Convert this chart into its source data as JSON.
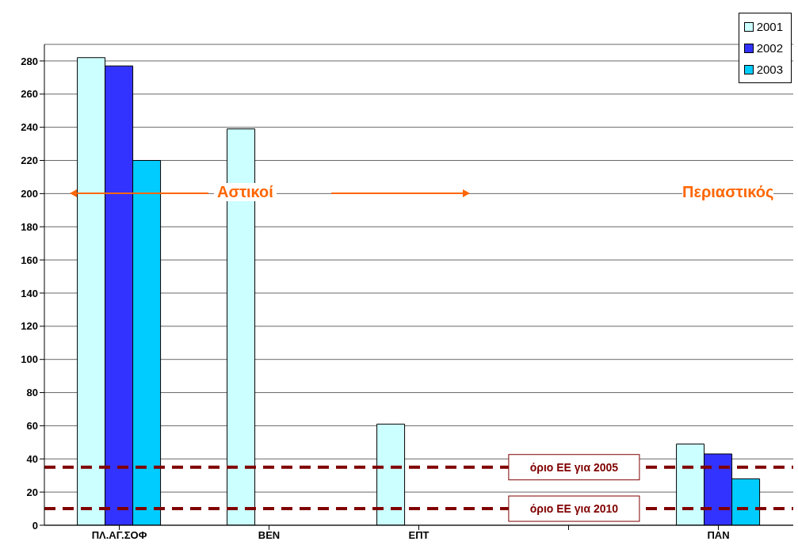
{
  "chart_data": {
    "type": "bar",
    "categories": [
      "ΠΛ.ΑΓ.ΣΟΦ",
      "BEN",
      "ΕΠΤ",
      null,
      "ΠΑΝ"
    ],
    "series": [
      {
        "name": "2001",
        "color": "#ccffff",
        "values": [
          282,
          239,
          61,
          null,
          49
        ]
      },
      {
        "name": "2002",
        "color": "#3333ff",
        "values": [
          277,
          null,
          null,
          null,
          43
        ]
      },
      {
        "name": "2003",
        "color": "#00ccff",
        "values": [
          220,
          null,
          null,
          null,
          28
        ]
      }
    ],
    "ylim": [
      0,
      290
    ],
    "yticks": [
      0,
      20,
      40,
      60,
      80,
      100,
      120,
      140,
      160,
      180,
      200,
      220,
      240,
      260,
      280
    ],
    "grid": "y",
    "legend": "top right",
    "ref_lines": [
      {
        "axis": "y",
        "value": 35,
        "label": "όριο ΕΕ για 2005",
        "color": "#800000",
        "line_style": "dashed"
      },
      {
        "axis": "y",
        "value": 10,
        "label": "όριο ΕΕ για 2010",
        "color": "#800000",
        "line_style": "dashed"
      }
    ],
    "annotations": [
      "Αστικοί",
      "Περιαστικός"
    ]
  }
}
